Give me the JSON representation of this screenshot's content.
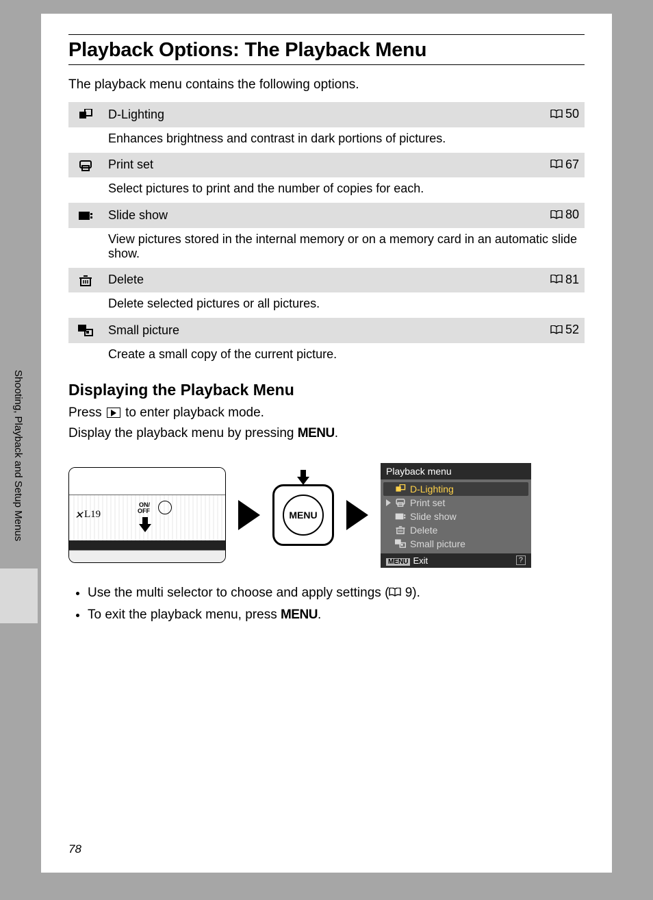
{
  "title": "Playback Options: The Playback Menu",
  "intro": "The playback menu contains the following options.",
  "options": [
    {
      "label": "D-Lighting",
      "page": "50",
      "desc": "Enhances brightness and contrast in dark portions of pictures.",
      "icon": "dlighting"
    },
    {
      "label": "Print set",
      "page": "67",
      "desc": "Select pictures to print and the number of copies for each.",
      "icon": "printset"
    },
    {
      "label": "Slide show",
      "page": "80",
      "desc": "View pictures stored in the internal memory or on a memory card in an automatic slide show.",
      "icon": "slideshow"
    },
    {
      "label": "Delete",
      "page": "81",
      "desc": "Delete selected pictures or all pictures.",
      "icon": "delete"
    },
    {
      "label": "Small picture",
      "page": "52",
      "desc": "Create a small copy of the current picture.",
      "icon": "smallpic"
    }
  ],
  "subheading": "Displaying the Playback Menu",
  "instr1_pre": "Press ",
  "instr1_post": " to enter playback mode.",
  "instr2_pre": "Display the playback menu by pressing ",
  "instr2_post": ".",
  "menu_word": "MENU",
  "camera": {
    "model": "L19",
    "onoff": "ON/\nOFF"
  },
  "lcd": {
    "header": "Playback menu",
    "items": [
      {
        "label": "D-Lighting",
        "icon": "dlighting",
        "selected": true
      },
      {
        "label": "Print set",
        "icon": "printset",
        "selected": false
      },
      {
        "label": "Slide show",
        "icon": "slideshow",
        "selected": false
      },
      {
        "label": "Delete",
        "icon": "delete",
        "selected": false
      },
      {
        "label": "Small picture",
        "icon": "smallpic",
        "selected": false
      }
    ],
    "exit_badge": "MENU",
    "exit_label": "Exit",
    "help": "?"
  },
  "notes_pre1": "Use the multi selector to choose and apply settings (",
  "notes_ref1": "9",
  "notes_post1": ").",
  "notes_pre2": "To exit the playback menu, press ",
  "notes_post2": ".",
  "side_text": "Shooting, Playback and Setup Menus",
  "page_number": "78",
  "colors": {
    "page_bg": "#a6a6a6",
    "row_head_bg": "#dedede",
    "lcd_dark": "#2a2a2a",
    "lcd_body": "#6c6c6c",
    "lcd_selected_bg": "#3d3d3d",
    "lcd_selected_fg": "#ffd24a",
    "lcd_item_fg": "#d9d9d9"
  }
}
